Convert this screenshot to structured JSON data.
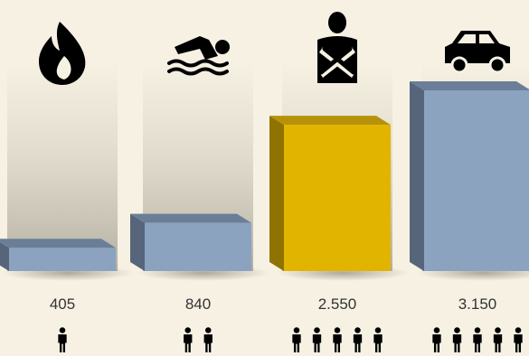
{
  "chart_data": {
    "type": "bar",
    "categories": [
      "fire",
      "swimming",
      "refusing / arms crossed",
      "car"
    ],
    "values": [
      405,
      840,
      2550,
      3150
    ],
    "value_labels": [
      "405",
      "840",
      "2.550",
      "3.150"
    ],
    "icons": [
      "flame-icon",
      "swimmer-icon",
      "arms-crossed-person-icon",
      "car-icon"
    ],
    "people_icon_counts": [
      1,
      2,
      5,
      5
    ],
    "highlight_index": 2,
    "ylim": [
      0,
      3150
    ],
    "grid": false,
    "legend": "none"
  },
  "colors": {
    "background": "#f6f1e3",
    "bar_front": "#8ba3bf",
    "bar_side": "#56657a",
    "bar_top": "#6b7e98",
    "highlight_front": "#e1b400",
    "highlight_side": "#8f7200",
    "highlight_top": "#b8910a",
    "icon": "#000000",
    "label": "#333333"
  }
}
